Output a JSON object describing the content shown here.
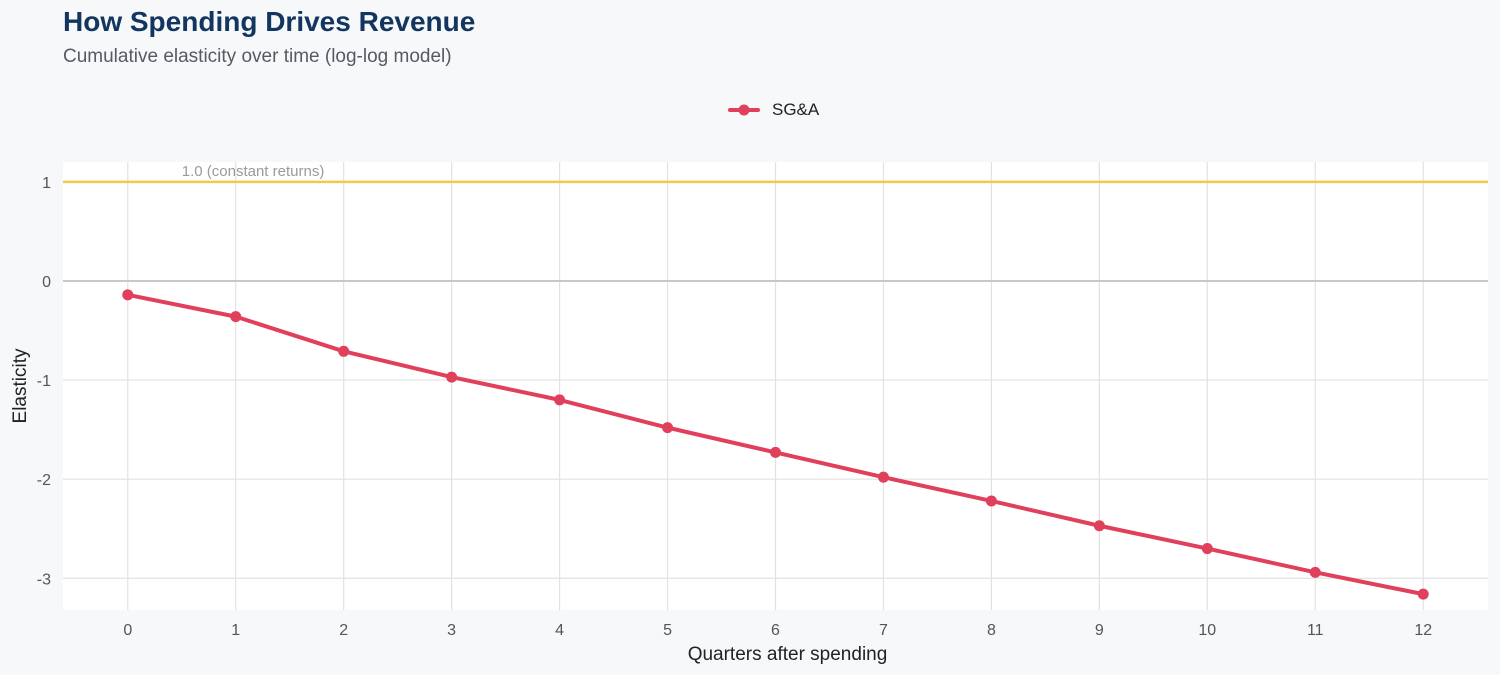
{
  "title": "How Spending Drives Revenue",
  "subtitle": "Cumulative elasticity over time (log-log model)",
  "colors": {
    "series": "#e0405c",
    "reference_line": "#f2c94c",
    "zero_line": "#c8c8c8",
    "grid": "#e2e2e2",
    "panel": "#ffffff",
    "background": "#f7f8fa",
    "title": "#133660"
  },
  "chart_data": {
    "type": "line",
    "title": "How Spending Drives Revenue",
    "subtitle": "Cumulative elasticity over time (log-log model)",
    "xlabel": "Quarters after spending",
    "ylabel": "Elasticity",
    "x": [
      0,
      1,
      2,
      3,
      4,
      5,
      6,
      7,
      8,
      9,
      10,
      11,
      12
    ],
    "series": [
      {
        "name": "SG&A",
        "values": [
          -0.14,
          -0.36,
          -0.71,
          -0.97,
          -1.2,
          -1.48,
          -1.73,
          -1.98,
          -2.22,
          -2.47,
          -2.7,
          -2.94,
          -3.16
        ]
      }
    ],
    "xticks": [
      "0",
      "1",
      "2",
      "3",
      "4",
      "5",
      "6",
      "7",
      "8",
      "9",
      "10",
      "11",
      "12"
    ],
    "yticks": [
      {
        "value": 1,
        "label": "1"
      },
      {
        "value": 0,
        "label": "0"
      },
      {
        "value": -1,
        "label": "-1"
      },
      {
        "value": -2,
        "label": "-2"
      },
      {
        "value": -3,
        "label": "-3"
      }
    ],
    "xlim": [
      -0.6,
      12.6
    ],
    "ylim": [
      -3.32,
      1.2
    ],
    "reference_line": {
      "y": 1.0,
      "label": "1.0 (constant returns)"
    },
    "zero_line": 0,
    "legend": "top-center",
    "grid": true
  }
}
